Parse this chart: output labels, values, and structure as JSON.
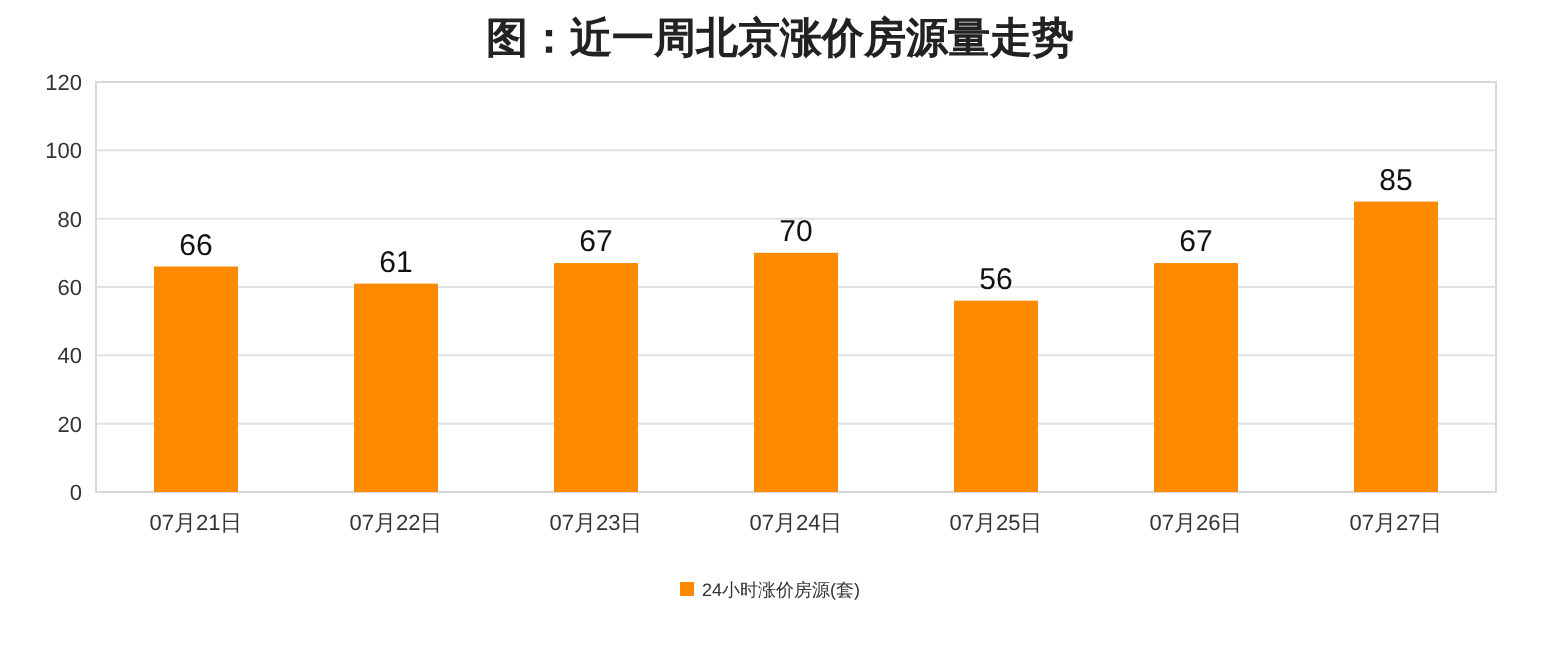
{
  "chart_data": {
    "type": "bar",
    "title": "图：近一周北京涨价房源量走势",
    "categories": [
      "07月21日",
      "07月22日",
      "07月23日",
      "07月24日",
      "07月25日",
      "07月26日",
      "07月27日"
    ],
    "series": [
      {
        "name": "24小时涨价房源(套)",
        "color": "#ff8a00",
        "values": [
          66,
          61,
          67,
          70,
          56,
          67,
          85
        ]
      }
    ],
    "ylim": [
      0,
      120
    ],
    "yticks": [
      0,
      20,
      40,
      60,
      80,
      100,
      120
    ],
    "grid": "y",
    "legend": "bottom",
    "data_labels": true
  }
}
